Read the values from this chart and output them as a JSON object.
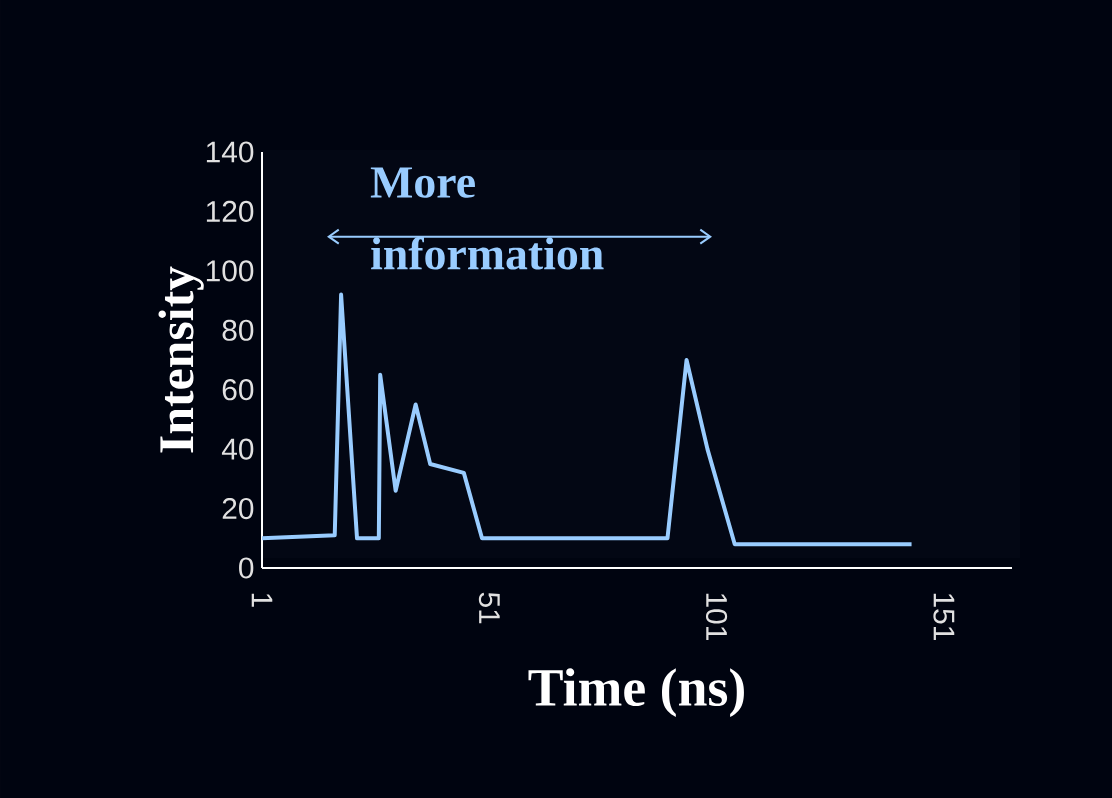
{
  "chart_data": {
    "type": "line",
    "xlabel": "Time (ns)",
    "ylabel": "Intensity",
    "x": [
      1,
      17,
      18.4,
      21.9,
      26.7,
      27,
      30.4,
      34.8,
      38,
      45.4,
      49.4,
      90.2,
      94.4,
      99,
      105,
      143.9
    ],
    "values": [
      10,
      11,
      92,
      10,
      10,
      65,
      26,
      55,
      35,
      32,
      10,
      10,
      70,
      40,
      8,
      8
    ],
    "color": "#99ccff",
    "xlim": [
      1,
      166
    ],
    "ylim": [
      0,
      140
    ],
    "xticks": [
      1,
      51,
      101,
      151
    ],
    "yticks": [
      0,
      20,
      40,
      60,
      80,
      100,
      120,
      140
    ],
    "grid": false,
    "annotations": [
      "More information"
    ]
  }
}
